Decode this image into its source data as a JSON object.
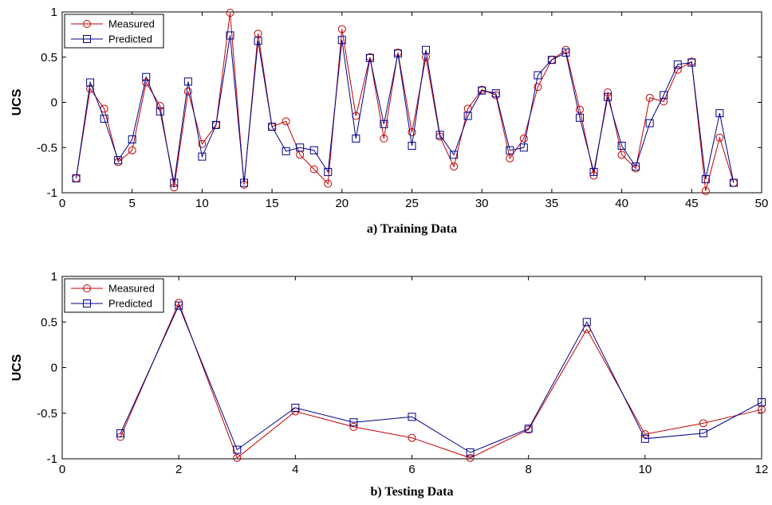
{
  "chart_data": [
    {
      "type": "line",
      "xlabel": "a) Training Data",
      "ylabel": "UCS",
      "xlim": [
        0,
        50
      ],
      "ylim": [
        -1,
        1
      ],
      "xticks": [
        0,
        5,
        10,
        15,
        20,
        25,
        30,
        35,
        40,
        45,
        50
      ],
      "yticks": [
        -1,
        -0.5,
        0,
        0.5,
        1
      ],
      "xtick_labels": [
        "0",
        "5",
        "10",
        "15",
        "20",
        "25",
        "30",
        "35",
        "40",
        "45",
        "50"
      ],
      "ytick_labels": [
        "-1",
        "-0.5",
        "0",
        "0.5",
        "1"
      ],
      "grid": false,
      "legend": "top-left",
      "x": [
        1,
        2,
        3,
        4,
        5,
        6,
        7,
        8,
        9,
        10,
        11,
        12,
        13,
        14,
        15,
        16,
        17,
        18,
        19,
        20,
        21,
        22,
        23,
        24,
        25,
        26,
        27,
        28,
        29,
        30,
        31,
        32,
        33,
        34,
        35,
        36,
        37,
        38,
        39,
        40,
        41,
        42,
        43,
        44,
        45,
        46,
        47,
        48
      ],
      "series": [
        {
          "name": "Measured",
          "color": "#c00000",
          "marker": "circle",
          "values": [
            -0.84,
            0.15,
            -0.07,
            -0.66,
            -0.53,
            0.22,
            -0.04,
            -0.94,
            0.12,
            -0.46,
            -0.25,
            0.99,
            -0.91,
            0.76,
            -0.27,
            -0.21,
            -0.58,
            -0.74,
            -0.9,
            0.81,
            -0.15,
            0.5,
            -0.4,
            0.55,
            -0.33,
            0.5,
            -0.38,
            -0.71,
            -0.07,
            0.14,
            0.08,
            -0.62,
            -0.4,
            0.17,
            0.47,
            0.58,
            -0.08,
            -0.81,
            0.11,
            -0.58,
            -0.73,
            0.05,
            0.01,
            0.36,
            0.45,
            -0.98,
            -0.39,
            -0.89
          ]
        },
        {
          "name": "Predicted",
          "color": "#00008b",
          "marker": "square",
          "values": [
            -0.84,
            0.22,
            -0.18,
            -0.64,
            -0.41,
            0.28,
            -0.1,
            -0.89,
            0.23,
            -0.6,
            -0.25,
            0.74,
            -0.89,
            0.68,
            -0.27,
            -0.54,
            -0.5,
            -0.53,
            -0.77,
            0.69,
            -0.4,
            0.49,
            -0.24,
            0.54,
            -0.48,
            0.58,
            -0.36,
            -0.58,
            -0.15,
            0.13,
            0.1,
            -0.53,
            -0.5,
            0.3,
            0.47,
            0.55,
            -0.17,
            -0.77,
            0.06,
            -0.48,
            -0.71,
            -0.23,
            0.08,
            0.42,
            0.44,
            -0.85,
            -0.12,
            -0.89
          ]
        }
      ]
    },
    {
      "type": "line",
      "xlabel": "b) Testing Data",
      "ylabel": "UCS",
      "xlim": [
        0,
        12
      ],
      "ylim": [
        -1,
        1
      ],
      "xticks": [
        0,
        2,
        4,
        6,
        8,
        10,
        12
      ],
      "yticks": [
        -1,
        -0.5,
        0,
        0.5,
        1
      ],
      "xtick_labels": [
        "0",
        "2",
        "4",
        "6",
        "8",
        "10",
        "12"
      ],
      "ytick_labels": [
        "-1",
        "-0.5",
        "0",
        "0.5",
        "1"
      ],
      "grid": false,
      "legend": "top-left",
      "x": [
        1,
        2,
        3,
        4,
        5,
        6,
        7,
        8,
        9,
        10,
        11,
        12
      ],
      "series": [
        {
          "name": "Measured",
          "color": "#c00000",
          "marker": "circle",
          "values": [
            -0.76,
            0.71,
            -0.99,
            -0.48,
            -0.65,
            -0.77,
            -0.99,
            -0.68,
            0.42,
            -0.73,
            -0.61,
            -0.46
          ]
        },
        {
          "name": "Predicted",
          "color": "#00008b",
          "marker": "square",
          "values": [
            -0.72,
            0.68,
            -0.9,
            -0.44,
            -0.6,
            -0.54,
            -0.93,
            -0.67,
            0.5,
            -0.78,
            -0.72,
            -0.38
          ]
        }
      ]
    }
  ]
}
